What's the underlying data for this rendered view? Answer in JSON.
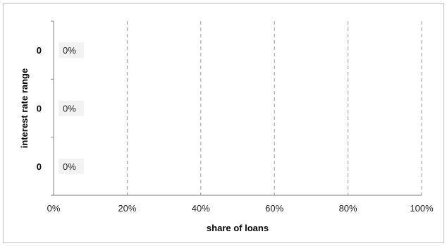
{
  "chart_data": {
    "type": "bar",
    "orientation": "horizontal",
    "categories": [
      "0",
      "0",
      "0"
    ],
    "values": [
      0,
      0,
      0
    ],
    "data_labels": [
      "0%",
      "0%",
      "0%"
    ],
    "xlabel": "share of loans",
    "ylabel": "interest rate range",
    "xlim": [
      0,
      1
    ],
    "x_ticks": [
      0,
      0.2,
      0.4,
      0.6,
      0.8,
      1.0
    ],
    "x_tick_labels": [
      "0%",
      "20%",
      "40%",
      "60%",
      "80%",
      "100%"
    ],
    "grid": "vertical dashed",
    "colors": {
      "gridline": "#9a9a9a",
      "axis": "#808080",
      "label_bg": "#f2f2f2"
    }
  }
}
